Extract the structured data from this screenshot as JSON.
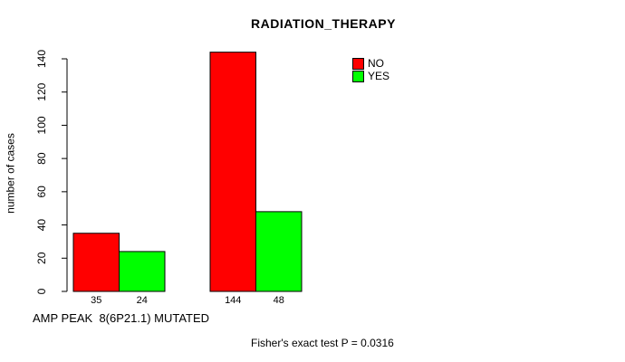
{
  "chart_data": {
    "type": "bar",
    "title": "RADIATION_THERAPY",
    "ylabel": "number of cases",
    "xlabel": "AMP PEAK  8(6P21.1) MUTATED",
    "annotation": "Fisher's exact test P = 0.0316",
    "ylim": [
      0,
      144
    ],
    "yticks": [
      0,
      20,
      40,
      60,
      80,
      100,
      120,
      140
    ],
    "grid": false,
    "legend_position": "top-right",
    "legend": [
      {
        "label": "NO",
        "color": "#FF0000"
      },
      {
        "label": "YES",
        "color": "#00FF00"
      }
    ],
    "series": [
      {
        "name": "NO",
        "color": "#FF0000",
        "values": [
          35,
          144
        ]
      },
      {
        "name": "YES",
        "color": "#00FF00",
        "values": [
          24,
          48
        ]
      }
    ],
    "bar_value_labels": [
      [
        "35",
        "24"
      ],
      [
        "144",
        "48"
      ]
    ]
  }
}
